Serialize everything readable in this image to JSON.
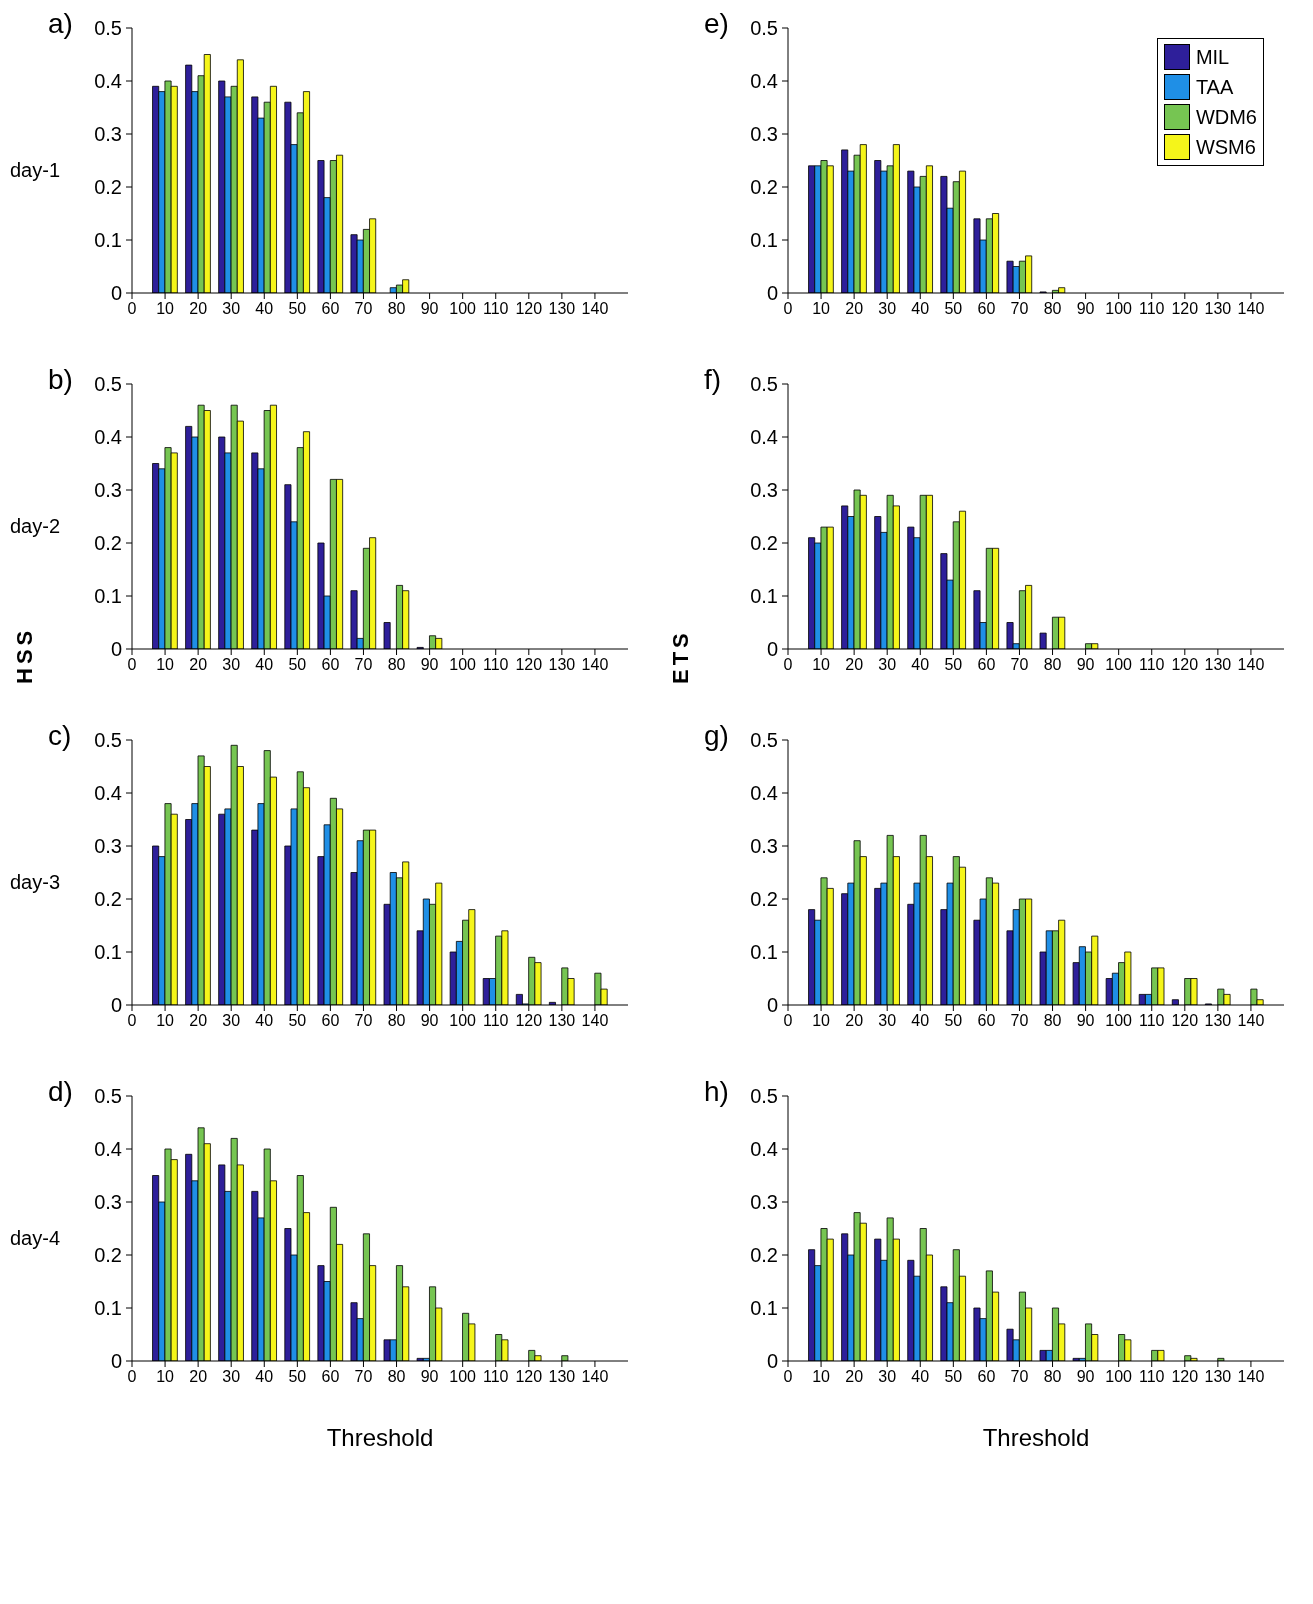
{
  "chart_data": [
    {
      "type": "bar",
      "title": "a)",
      "ylabel": "day-1",
      "x": [
        10,
        20,
        30,
        40,
        50,
        60,
        70,
        80,
        90,
        100,
        110,
        120,
        130,
        140
      ],
      "xlim": [
        0,
        150
      ],
      "xticks": [
        0,
        10,
        20,
        30,
        40,
        50,
        60,
        70,
        80,
        90,
        100,
        110,
        120,
        130,
        140
      ],
      "ylim": [
        0,
        0.5
      ],
      "yticks": [
        0,
        0.1,
        0.2,
        0.3,
        0.4,
        0.5
      ],
      "legend": false,
      "series": [
        {
          "color": "#2e1f9a",
          "values": [
            0.39,
            0.43,
            0.4,
            0.37,
            0.36,
            0.25,
            0.11,
            0,
            0,
            0,
            0,
            0,
            0,
            0
          ]
        },
        {
          "color": "#1f8fe6",
          "values": [
            0.38,
            0.38,
            0.37,
            0.33,
            0.28,
            0.18,
            0.1,
            0.01,
            0,
            0,
            0,
            0,
            0,
            0
          ]
        },
        {
          "color": "#76c552",
          "values": [
            0.4,
            0.41,
            0.39,
            0.36,
            0.34,
            0.25,
            0.12,
            0.015,
            0,
            0,
            0,
            0,
            0,
            0
          ]
        },
        {
          "color": "#f5f51a",
          "values": [
            0.39,
            0.45,
            0.44,
            0.39,
            0.38,
            0.26,
            0.14,
            0.025,
            0,
            0,
            0,
            0,
            0,
            0
          ]
        }
      ]
    },
    {
      "type": "bar",
      "title": "e)",
      "x": [
        10,
        20,
        30,
        40,
        50,
        60,
        70,
        80,
        90,
        100,
        110,
        120,
        130,
        140
      ],
      "xlim": [
        0,
        150
      ],
      "xticks": [
        0,
        10,
        20,
        30,
        40,
        50,
        60,
        70,
        80,
        90,
        100,
        110,
        120,
        130,
        140
      ],
      "ylim": [
        0,
        0.5
      ],
      "yticks": [
        0,
        0.1,
        0.2,
        0.3,
        0.4,
        0.5
      ],
      "legend": "top right",
      "series": [
        {
          "name": "MIL",
          "color": "#2e1f9a",
          "values": [
            0.24,
            0.27,
            0.25,
            0.23,
            0.22,
            0.14,
            0.06,
            0.002,
            0,
            0,
            0,
            0,
            0,
            0
          ]
        },
        {
          "name": "TAA",
          "color": "#1f8fe6",
          "values": [
            0.24,
            0.23,
            0.23,
            0.2,
            0.16,
            0.1,
            0.05,
            0,
            0,
            0,
            0,
            0,
            0,
            0
          ]
        },
        {
          "name": "WDM6",
          "color": "#76c552",
          "values": [
            0.25,
            0.26,
            0.24,
            0.22,
            0.21,
            0.14,
            0.06,
            0.005,
            0,
            0,
            0,
            0,
            0,
            0
          ]
        },
        {
          "name": "WSM6",
          "color": "#f5f51a",
          "values": [
            0.24,
            0.28,
            0.28,
            0.24,
            0.23,
            0.15,
            0.07,
            0.01,
            0,
            0,
            0,
            0,
            0,
            0
          ]
        }
      ]
    },
    {
      "type": "bar",
      "title": "b)",
      "ylabel": "day-2",
      "annotations": [
        "HSS"
      ],
      "x": [
        10,
        20,
        30,
        40,
        50,
        60,
        70,
        80,
        90,
        100,
        110,
        120,
        130,
        140
      ],
      "xlim": [
        0,
        150
      ],
      "xticks": [
        0,
        10,
        20,
        30,
        40,
        50,
        60,
        70,
        80,
        90,
        100,
        110,
        120,
        130,
        140
      ],
      "ylim": [
        0,
        0.5
      ],
      "yticks": [
        0,
        0.1,
        0.2,
        0.3,
        0.4,
        0.5
      ],
      "legend": false,
      "series": [
        {
          "color": "#2e1f9a",
          "values": [
            0.35,
            0.42,
            0.4,
            0.37,
            0.31,
            0.2,
            0.11,
            0.05,
            0.003,
            0,
            0,
            0,
            0,
            0
          ]
        },
        {
          "color": "#1f8fe6",
          "values": [
            0.34,
            0.4,
            0.37,
            0.34,
            0.24,
            0.1,
            0.02,
            0,
            0,
            0,
            0,
            0,
            0,
            0
          ]
        },
        {
          "color": "#76c552",
          "values": [
            0.38,
            0.46,
            0.46,
            0.45,
            0.38,
            0.32,
            0.19,
            0.12,
            0.025,
            0,
            0,
            0,
            0,
            0
          ]
        },
        {
          "color": "#f5f51a",
          "values": [
            0.37,
            0.45,
            0.43,
            0.46,
            0.41,
            0.32,
            0.21,
            0.11,
            0.02,
            0,
            0,
            0,
            0,
            0
          ]
        }
      ]
    },
    {
      "type": "bar",
      "title": "f)",
      "annotations": [
        "ETS"
      ],
      "x": [
        10,
        20,
        30,
        40,
        50,
        60,
        70,
        80,
        90,
        100,
        110,
        120,
        130,
        140
      ],
      "xlim": [
        0,
        150
      ],
      "xticks": [
        0,
        10,
        20,
        30,
        40,
        50,
        60,
        70,
        80,
        90,
        100,
        110,
        120,
        130,
        140
      ],
      "ylim": [
        0,
        0.5
      ],
      "yticks": [
        0,
        0.1,
        0.2,
        0.3,
        0.4,
        0.5
      ],
      "legend": false,
      "series": [
        {
          "color": "#2e1f9a",
          "values": [
            0.21,
            0.27,
            0.25,
            0.23,
            0.18,
            0.11,
            0.05,
            0.03,
            0,
            0,
            0,
            0,
            0,
            0
          ]
        },
        {
          "color": "#1f8fe6",
          "values": [
            0.2,
            0.25,
            0.22,
            0.21,
            0.13,
            0.05,
            0.01,
            0,
            0,
            0,
            0,
            0,
            0,
            0
          ]
        },
        {
          "color": "#76c552",
          "values": [
            0.23,
            0.3,
            0.29,
            0.29,
            0.24,
            0.19,
            0.11,
            0.06,
            0.01,
            0,
            0,
            0,
            0,
            0
          ]
        },
        {
          "color": "#f5f51a",
          "values": [
            0.23,
            0.29,
            0.27,
            0.29,
            0.26,
            0.19,
            0.12,
            0.06,
            0.01,
            0,
            0,
            0,
            0,
            0
          ]
        }
      ]
    },
    {
      "type": "bar",
      "title": "c)",
      "ylabel": "day-3",
      "x": [
        10,
        20,
        30,
        40,
        50,
        60,
        70,
        80,
        90,
        100,
        110,
        120,
        130,
        140
      ],
      "xlim": [
        0,
        150
      ],
      "xticks": [
        0,
        10,
        20,
        30,
        40,
        50,
        60,
        70,
        80,
        90,
        100,
        110,
        120,
        130,
        140
      ],
      "ylim": [
        0,
        0.5
      ],
      "yticks": [
        0,
        0.1,
        0.2,
        0.3,
        0.4,
        0.5
      ],
      "legend": false,
      "series": [
        {
          "color": "#2e1f9a",
          "values": [
            0.3,
            0.35,
            0.36,
            0.33,
            0.3,
            0.28,
            0.25,
            0.19,
            0.14,
            0.1,
            0.05,
            0.02,
            0.005,
            0
          ]
        },
        {
          "color": "#1f8fe6",
          "values": [
            0.28,
            0.38,
            0.37,
            0.38,
            0.37,
            0.34,
            0.31,
            0.25,
            0.2,
            0.12,
            0.05,
            0.002,
            0,
            0
          ]
        },
        {
          "color": "#76c552",
          "values": [
            0.38,
            0.47,
            0.49,
            0.48,
            0.44,
            0.39,
            0.33,
            0.24,
            0.19,
            0.16,
            0.13,
            0.09,
            0.07,
            0.06
          ]
        },
        {
          "color": "#f5f51a",
          "values": [
            0.36,
            0.45,
            0.45,
            0.43,
            0.41,
            0.37,
            0.33,
            0.27,
            0.23,
            0.18,
            0.14,
            0.08,
            0.05,
            0.03
          ]
        }
      ]
    },
    {
      "type": "bar",
      "title": "g)",
      "x": [
        10,
        20,
        30,
        40,
        50,
        60,
        70,
        80,
        90,
        100,
        110,
        120,
        130,
        140
      ],
      "xlim": [
        0,
        150
      ],
      "xticks": [
        0,
        10,
        20,
        30,
        40,
        50,
        60,
        70,
        80,
        90,
        100,
        110,
        120,
        130,
        140
      ],
      "ylim": [
        0,
        0.5
      ],
      "yticks": [
        0,
        0.1,
        0.2,
        0.3,
        0.4,
        0.5
      ],
      "legend": false,
      "series": [
        {
          "color": "#2e1f9a",
          "values": [
            0.18,
            0.21,
            0.22,
            0.19,
            0.18,
            0.16,
            0.14,
            0.1,
            0.08,
            0.05,
            0.02,
            0.01,
            0.002,
            0
          ]
        },
        {
          "color": "#1f8fe6",
          "values": [
            0.16,
            0.23,
            0.23,
            0.23,
            0.23,
            0.2,
            0.18,
            0.14,
            0.11,
            0.06,
            0.02,
            0,
            0,
            0
          ]
        },
        {
          "color": "#76c552",
          "values": [
            0.24,
            0.31,
            0.32,
            0.32,
            0.28,
            0.24,
            0.2,
            0.14,
            0.1,
            0.08,
            0.07,
            0.05,
            0.03,
            0.03
          ]
        },
        {
          "color": "#f5f51a",
          "values": [
            0.22,
            0.28,
            0.28,
            0.28,
            0.26,
            0.23,
            0.2,
            0.16,
            0.13,
            0.1,
            0.07,
            0.05,
            0.02,
            0.01
          ]
        }
      ]
    },
    {
      "type": "bar",
      "title": "d)",
      "ylabel": "day-4",
      "xlabel": "Threshold",
      "x": [
        10,
        20,
        30,
        40,
        50,
        60,
        70,
        80,
        90,
        100,
        110,
        120,
        130,
        140
      ],
      "xlim": [
        0,
        150
      ],
      "xticks": [
        0,
        10,
        20,
        30,
        40,
        50,
        60,
        70,
        80,
        90,
        100,
        110,
        120,
        130,
        140
      ],
      "ylim": [
        0,
        0.5
      ],
      "yticks": [
        0,
        0.1,
        0.2,
        0.3,
        0.4,
        0.5
      ],
      "legend": false,
      "series": [
        {
          "color": "#2e1f9a",
          "values": [
            0.35,
            0.39,
            0.37,
            0.32,
            0.25,
            0.18,
            0.11,
            0.04,
            0.005,
            0,
            0,
            0,
            0,
            0
          ]
        },
        {
          "color": "#1f8fe6",
          "values": [
            0.3,
            0.34,
            0.32,
            0.27,
            0.2,
            0.15,
            0.08,
            0.04,
            0.005,
            0,
            0,
            0,
            0,
            0
          ]
        },
        {
          "color": "#76c552",
          "values": [
            0.4,
            0.44,
            0.42,
            0.4,
            0.35,
            0.29,
            0.24,
            0.18,
            0.14,
            0.09,
            0.05,
            0.02,
            0.01,
            0
          ]
        },
        {
          "color": "#f5f51a",
          "values": [
            0.38,
            0.41,
            0.37,
            0.34,
            0.28,
            0.22,
            0.18,
            0.14,
            0.1,
            0.07,
            0.04,
            0.01,
            0,
            0
          ]
        }
      ]
    },
    {
      "type": "bar",
      "title": "h)",
      "xlabel": "Threshold",
      "x": [
        10,
        20,
        30,
        40,
        50,
        60,
        70,
        80,
        90,
        100,
        110,
        120,
        130,
        140
      ],
      "xlim": [
        0,
        150
      ],
      "xticks": [
        0,
        10,
        20,
        30,
        40,
        50,
        60,
        70,
        80,
        90,
        100,
        110,
        120,
        130,
        140
      ],
      "ylim": [
        0,
        0.5
      ],
      "yticks": [
        0,
        0.1,
        0.2,
        0.3,
        0.4,
        0.5
      ],
      "legend": false,
      "series": [
        {
          "color": "#2e1f9a",
          "values": [
            0.21,
            0.24,
            0.23,
            0.19,
            0.14,
            0.1,
            0.06,
            0.02,
            0.005,
            0,
            0,
            0,
            0,
            0
          ]
        },
        {
          "color": "#1f8fe6",
          "values": [
            0.18,
            0.2,
            0.19,
            0.16,
            0.11,
            0.08,
            0.04,
            0.02,
            0.005,
            0,
            0,
            0,
            0,
            0
          ]
        },
        {
          "color": "#76c552",
          "values": [
            0.25,
            0.28,
            0.27,
            0.25,
            0.21,
            0.17,
            0.13,
            0.1,
            0.07,
            0.05,
            0.02,
            0.01,
            0.005,
            0
          ]
        },
        {
          "color": "#f5f51a",
          "values": [
            0.23,
            0.26,
            0.23,
            0.2,
            0.16,
            0.13,
            0.1,
            0.07,
            0.05,
            0.04,
            0.02,
            0.005,
            0,
            0
          ]
        }
      ]
    }
  ]
}
